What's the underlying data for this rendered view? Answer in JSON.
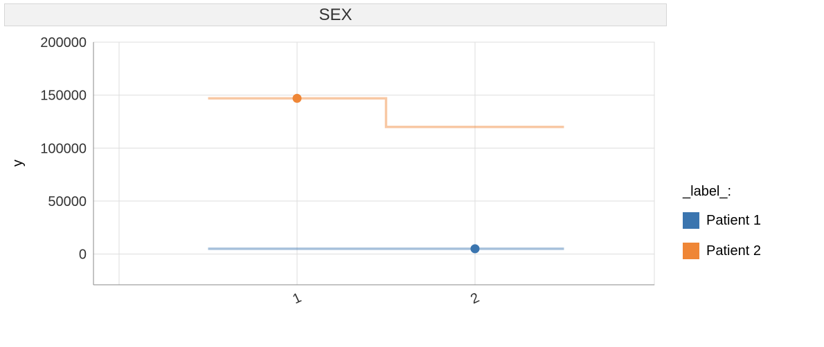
{
  "chart_data": {
    "type": "line",
    "title": "SEX",
    "ylabel": "y",
    "xlabel": "",
    "x_ticks": [
      "1",
      "2"
    ],
    "y_ticks": [
      "200000",
      "150000",
      "100000",
      "50000",
      "0"
    ],
    "ylim": [
      -29000,
      200000
    ],
    "xlim": [
      0.15,
      2.5
    ],
    "grid": true,
    "legend": {
      "title": "_label_:",
      "placement": "right",
      "entries": [
        "Patient 1",
        "Patient 2"
      ]
    },
    "series": [
      {
        "name": "Patient 1",
        "color": "#3b75af",
        "step_segments": [
          {
            "x0": 0.5,
            "x1": 2.5,
            "y": 5000
          }
        ],
        "point": {
          "x": 2,
          "y": 5000
        }
      },
      {
        "name": "Patient 2",
        "color": "#ef8636",
        "step_segments": [
          {
            "x0": 0.5,
            "x1": 1.5,
            "y": 147000
          },
          {
            "x0": 1.5,
            "x1": 2.5,
            "y": 120000
          }
        ],
        "point": {
          "x": 1,
          "y": 147000
        }
      }
    ]
  }
}
